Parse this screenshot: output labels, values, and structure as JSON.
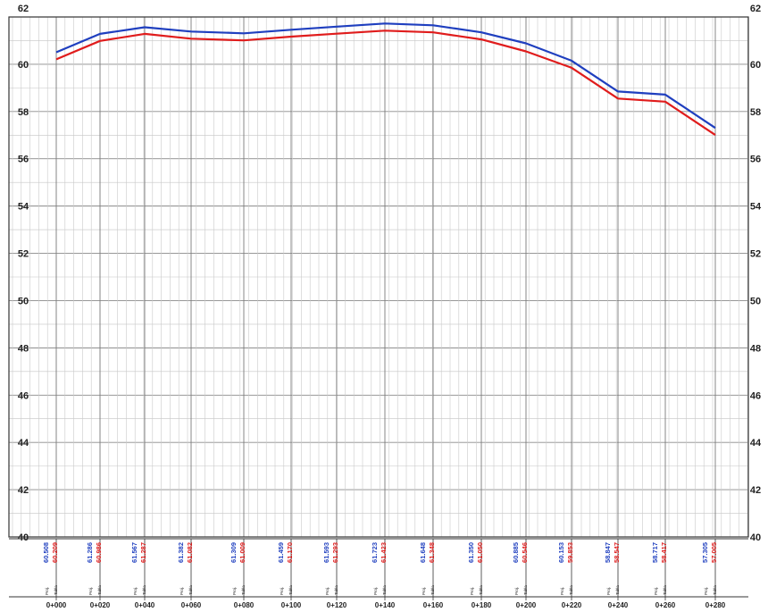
{
  "chart_data": {
    "type": "line",
    "title": "",
    "xlabel": "",
    "ylabel": "",
    "ylim": [
      40,
      62
    ],
    "yticks": [
      40,
      42,
      44,
      46,
      48,
      50,
      52,
      54,
      56,
      58,
      60,
      62
    ],
    "grid": true,
    "legend": "none",
    "x": [
      "0+000",
      "0+020",
      "0+040",
      "0+060",
      "0+080",
      "0+100",
      "0+120",
      "0+140",
      "0+160",
      "0+180",
      "0+200",
      "0+220",
      "0+240",
      "0+260",
      "0+280"
    ],
    "row_labels": [
      "Proj.",
      "Tabla"
    ],
    "series": [
      {
        "color": "#1f3fbf",
        "values": [
          60.508,
          61.286,
          61.567,
          61.382,
          61.309,
          61.459,
          61.593,
          61.723,
          61.648,
          61.35,
          60.885,
          60.153,
          58.847,
          58.717,
          57.305
        ],
        "labels": [
          "60.508",
          "61.286",
          "61.567",
          "61.382",
          "61.309",
          "61.459",
          "61.593",
          "61.723",
          "61.648",
          "61.350",
          "60.885",
          "60.153",
          "58.847",
          "58.717",
          "57.305"
        ]
      },
      {
        "color": "#e01c1c",
        "values": [
          60.209,
          60.986,
          61.287,
          61.082,
          61.009,
          61.17,
          61.293,
          61.423,
          61.348,
          61.05,
          60.546,
          59.853,
          58.547,
          58.417,
          57.005
        ],
        "labels": [
          "60.209",
          "60.986",
          "61.287",
          "61.082",
          "61.009",
          "61.170",
          "61.293",
          "61.423",
          "61.348",
          "61.050",
          "60.546",
          "59.853",
          "58.547",
          "58.417",
          "57.005"
        ]
      }
    ]
  }
}
